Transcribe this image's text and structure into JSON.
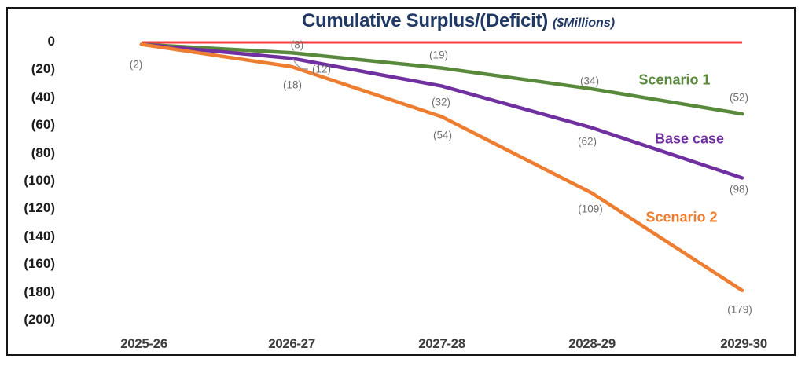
{
  "title": {
    "main": "Cumulative Surplus/(Deficit)",
    "unit": "($Millions)"
  },
  "chart_data": {
    "type": "line",
    "categories": [
      "2025-26",
      "2026-27",
      "2027-28",
      "2028-29",
      "2029-30"
    ],
    "series": [
      {
        "name": "Scenario 1",
        "color": "#598a3c",
        "values": [
          -2,
          -8,
          -19,
          -34,
          -52
        ],
        "point_labels": [
          "(2)",
          "(8)",
          "(19)",
          "(34)",
          "(52)"
        ]
      },
      {
        "name": "Base case",
        "color": "#7030a0",
        "values": [
          -2,
          -12,
          -32,
          -62,
          -98
        ],
        "point_labels": [
          "(2)",
          "(12)",
          "(32)",
          "(62)",
          "(98)"
        ]
      },
      {
        "name": "Scenario 2",
        "color": "#ed7d31",
        "values": [
          -2,
          -18,
          -54,
          -109,
          -179
        ],
        "point_labels": [
          "(2)",
          "(18)",
          "(54)",
          "(109)",
          "(179)"
        ]
      }
    ],
    "shared_first_point_label": "(2)",
    "zero_line": {
      "value": 0,
      "color": "#fb3b3b"
    },
    "y_ticks": [
      "0",
      "(20)",
      "(40)",
      "(60)",
      "(80)",
      "(100)",
      "(120)",
      "(140)",
      "(160)",
      "(180)",
      "(200)"
    ],
    "ylim": [
      -200,
      0
    ],
    "xlabel": "",
    "ylabel": "",
    "grid": false,
    "legend_position": "inline-right-of-lines",
    "label_leader": {
      "attached_to": "(12)",
      "color": "#a6a6a6"
    }
  }
}
